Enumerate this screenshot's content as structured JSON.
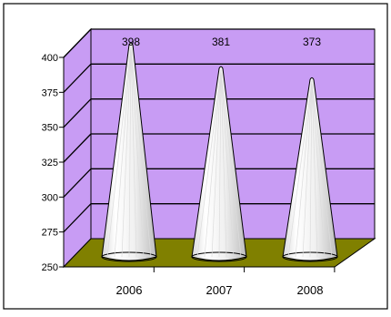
{
  "chart_data": {
    "type": "bar",
    "bar_shape": "cone",
    "three_d": true,
    "categories": [
      "2006",
      "2007",
      "2008"
    ],
    "values": [
      398,
      381,
      373
    ],
    "data_labels": [
      "398",
      "381",
      "373"
    ],
    "ylim": [
      250,
      400
    ],
    "yticks": [
      "250",
      "275",
      "300",
      "325",
      "350",
      "375",
      "400"
    ],
    "grid": true,
    "legend": "none",
    "colors": {
      "back_wall": "#c89cf4",
      "floor": "#808000",
      "cone": "#f2f2f2",
      "gridline": "#000000",
      "border": "#000000"
    }
  }
}
